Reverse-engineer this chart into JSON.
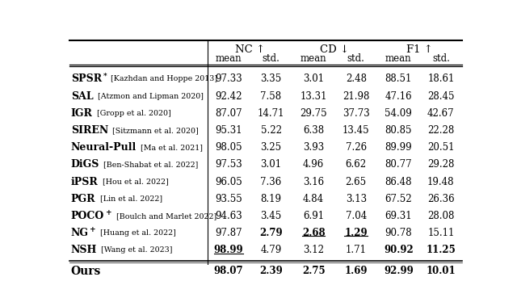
{
  "col_headers": [
    "NC ↑",
    "CD ↓",
    "F1 ↑"
  ],
  "sub_headers": [
    "mean",
    "std.",
    "mean",
    "std.",
    "mean",
    "std."
  ],
  "rows": [
    {
      "method": "SPSR",
      "superscript": "*",
      "citation": "[Kazhdan and Hoppe 2013]",
      "values": [
        "97.33",
        "3.35",
        "3.01",
        "2.48",
        "88.51",
        "18.61"
      ],
      "bold": [
        false,
        false,
        false,
        false,
        false,
        false
      ],
      "underline": [
        false,
        false,
        false,
        false,
        false,
        false
      ]
    },
    {
      "method": "SAL",
      "superscript": "",
      "citation": "[Atzmon and Lipman 2020]",
      "values": [
        "92.42",
        "7.58",
        "13.31",
        "21.98",
        "47.16",
        "28.45"
      ],
      "bold": [
        false,
        false,
        false,
        false,
        false,
        false
      ],
      "underline": [
        false,
        false,
        false,
        false,
        false,
        false
      ]
    },
    {
      "method": "IGR",
      "superscript": "",
      "citation": "[Gropp et al. 2020]",
      "values": [
        "87.07",
        "14.71",
        "29.75",
        "37.73",
        "54.09",
        "42.67"
      ],
      "bold": [
        false,
        false,
        false,
        false,
        false,
        false
      ],
      "underline": [
        false,
        false,
        false,
        false,
        false,
        false
      ]
    },
    {
      "method": "SIREN",
      "superscript": "",
      "citation": "[Sitzmann et al. 2020]",
      "values": [
        "95.31",
        "5.22",
        "6.38",
        "13.45",
        "80.85",
        "22.28"
      ],
      "bold": [
        false,
        false,
        false,
        false,
        false,
        false
      ],
      "underline": [
        false,
        false,
        false,
        false,
        false,
        false
      ]
    },
    {
      "method": "Neural-Pull",
      "superscript": "",
      "citation": "[Ma et al. 2021]",
      "values": [
        "98.05",
        "3.25",
        "3.93",
        "7.26",
        "89.99",
        "20.51"
      ],
      "bold": [
        false,
        false,
        false,
        false,
        false,
        false
      ],
      "underline": [
        false,
        false,
        false,
        false,
        false,
        false
      ]
    },
    {
      "method": "DiGS",
      "superscript": "",
      "citation": "[Ben-Shabat et al. 2022]",
      "values": [
        "97.53",
        "3.01",
        "4.96",
        "6.62",
        "80.77",
        "29.28"
      ],
      "bold": [
        false,
        false,
        false,
        false,
        false,
        false
      ],
      "underline": [
        false,
        false,
        false,
        false,
        false,
        false
      ]
    },
    {
      "method": "iPSR",
      "superscript": "",
      "citation": "[Hou et al. 2022]",
      "values": [
        "96.05",
        "7.36",
        "3.16",
        "2.65",
        "86.48",
        "19.48"
      ],
      "bold": [
        false,
        false,
        false,
        false,
        false,
        false
      ],
      "underline": [
        false,
        false,
        false,
        false,
        false,
        false
      ]
    },
    {
      "method": "PGR",
      "superscript": "",
      "citation": "[Lin et al. 2022]",
      "values": [
        "93.55",
        "8.19",
        "4.84",
        "3.13",
        "67.52",
        "26.36"
      ],
      "bold": [
        false,
        false,
        false,
        false,
        false,
        false
      ],
      "underline": [
        false,
        false,
        false,
        false,
        false,
        false
      ]
    },
    {
      "method": "POCO",
      "superscript": "+",
      "citation": "[Boulch and Marlet 2022]",
      "values": [
        "94.63",
        "3.45",
        "6.91",
        "7.04",
        "69.31",
        "28.08"
      ],
      "bold": [
        false,
        false,
        false,
        false,
        false,
        false
      ],
      "underline": [
        false,
        false,
        false,
        false,
        false,
        false
      ]
    },
    {
      "method": "NG",
      "superscript": "+",
      "citation": "[Huang et al. 2022]",
      "values": [
        "97.87",
        "2.79",
        "2.68",
        "1.29",
        "90.78",
        "15.11"
      ],
      "bold": [
        false,
        true,
        true,
        true,
        false,
        false
      ],
      "underline": [
        false,
        false,
        true,
        true,
        false,
        false
      ]
    },
    {
      "method": "NSH",
      "superscript": "",
      "citation": "[Wang et al. 2023]",
      "values": [
        "98.99",
        "4.79",
        "3.12",
        "1.71",
        "90.92",
        "11.25"
      ],
      "bold": [
        true,
        false,
        false,
        false,
        true,
        true
      ],
      "underline": [
        true,
        false,
        false,
        false,
        false,
        false
      ]
    }
  ],
  "ours_row": {
    "method": "Ours",
    "values": [
      "98.07",
      "2.39",
      "2.75",
      "1.69",
      "92.99",
      "10.01"
    ],
    "bold": [
      true,
      true,
      true,
      true,
      true,
      true
    ],
    "underline": [
      false,
      true,
      false,
      false,
      true,
      true
    ]
  },
  "bg_color": "#ffffff",
  "text_color": "#000000"
}
